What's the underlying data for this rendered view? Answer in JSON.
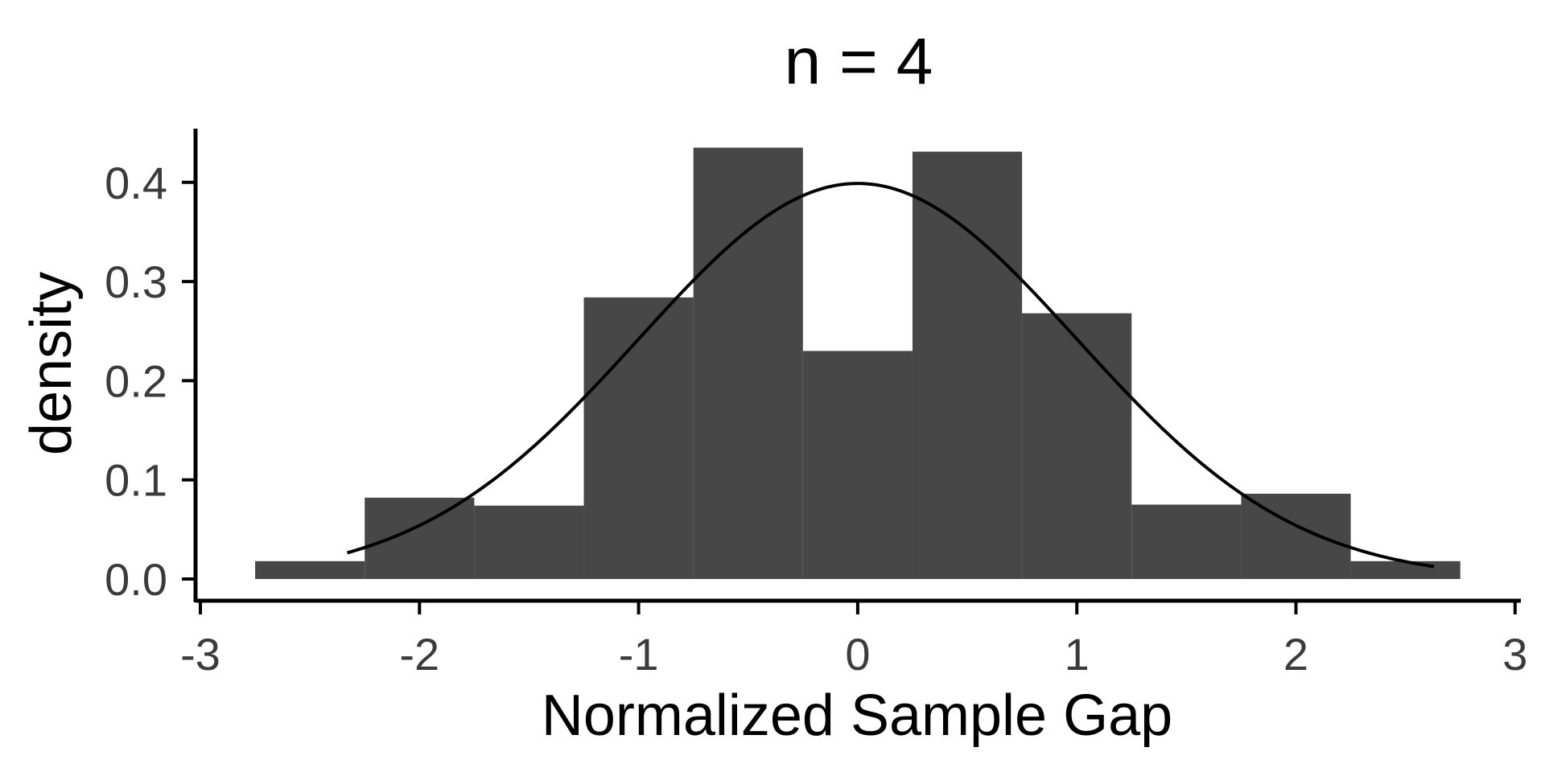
{
  "chart_data": {
    "type": "bar",
    "title": "n = 4",
    "xlabel": "Normalized Sample Gap",
    "ylabel": "density",
    "xlim": [
      -3,
      3
    ],
    "ylim": [
      0,
      0.45
    ],
    "x_ticks": [
      -3,
      -2,
      -1,
      0,
      1,
      2,
      3
    ],
    "x_tick_labels": [
      "-3",
      "-2",
      "-1",
      "0",
      "1",
      "2",
      "3"
    ],
    "y_ticks": [
      0.0,
      0.1,
      0.2,
      0.3,
      0.4
    ],
    "y_tick_labels": [
      "0.0",
      "0.1",
      "0.2",
      "0.3",
      "0.4"
    ],
    "bins": [
      {
        "x0": -2.75,
        "x1": -2.25,
        "value": 0.018
      },
      {
        "x0": -2.25,
        "x1": -1.75,
        "value": 0.082
      },
      {
        "x0": -1.75,
        "x1": -1.25,
        "value": 0.074
      },
      {
        "x0": -1.25,
        "x1": -0.75,
        "value": 0.284
      },
      {
        "x0": -0.75,
        "x1": -0.25,
        "value": 0.435
      },
      {
        "x0": -0.25,
        "x1": 0.25,
        "value": 0.23
      },
      {
        "x0": 0.25,
        "x1": 0.75,
        "value": 0.431
      },
      {
        "x0": 0.75,
        "x1": 1.25,
        "value": 0.268
      },
      {
        "x0": 1.25,
        "x1": 1.75,
        "value": 0.075
      },
      {
        "x0": 1.75,
        "x1": 2.25,
        "value": 0.086
      },
      {
        "x0": 2.25,
        "x1": 2.75,
        "value": 0.018
      }
    ],
    "curve": {
      "type": "normal_density",
      "mean": 0,
      "sd": 1,
      "x_range": [
        -2.33,
        2.63
      ]
    },
    "grid": false,
    "colors": {
      "bar": "#474747",
      "curve": "#000000",
      "axis": "#000000",
      "tick_label": "#3b3b3b",
      "background": "#ffffff"
    }
  }
}
